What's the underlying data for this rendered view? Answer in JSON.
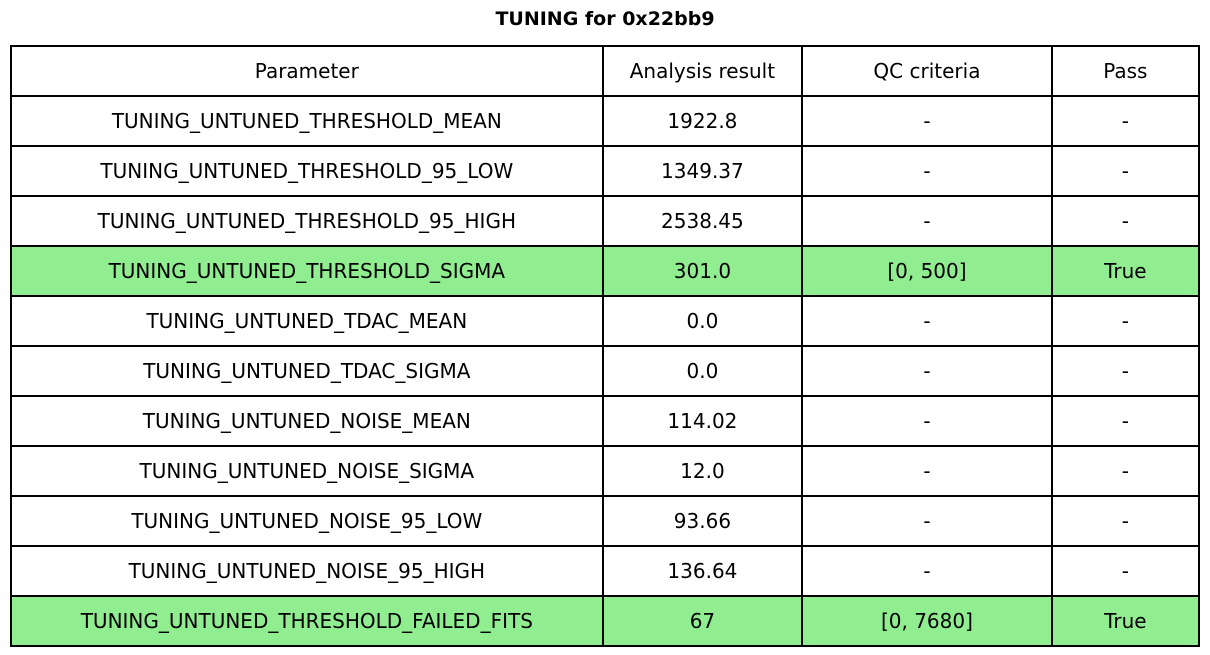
{
  "title": "TUNING for 0x22bb9",
  "chart_data": {
    "type": "table",
    "title": "TUNING for 0x22bb9",
    "columns": [
      "Parameter",
      "Analysis result",
      "QC criteria",
      "Pass"
    ],
    "rows": [
      {
        "parameter": "TUNING_UNTUNED_THRESHOLD_MEAN",
        "analysis_result": "1922.8",
        "qc_criteria": "-",
        "pass": "-",
        "highlight": false
      },
      {
        "parameter": "TUNING_UNTUNED_THRESHOLD_95_LOW",
        "analysis_result": "1349.37",
        "qc_criteria": "-",
        "pass": "-",
        "highlight": false
      },
      {
        "parameter": "TUNING_UNTUNED_THRESHOLD_95_HIGH",
        "analysis_result": "2538.45",
        "qc_criteria": "-",
        "pass": "-",
        "highlight": false
      },
      {
        "parameter": "TUNING_UNTUNED_THRESHOLD_SIGMA",
        "analysis_result": "301.0",
        "qc_criteria": "[0, 500]",
        "pass": "True",
        "highlight": true
      },
      {
        "parameter": "TUNING_UNTUNED_TDAC_MEAN",
        "analysis_result": "0.0",
        "qc_criteria": "-",
        "pass": "-",
        "highlight": false
      },
      {
        "parameter": "TUNING_UNTUNED_TDAC_SIGMA",
        "analysis_result": "0.0",
        "qc_criteria": "-",
        "pass": "-",
        "highlight": false
      },
      {
        "parameter": "TUNING_UNTUNED_NOISE_MEAN",
        "analysis_result": "114.02",
        "qc_criteria": "-",
        "pass": "-",
        "highlight": false
      },
      {
        "parameter": "TUNING_UNTUNED_NOISE_SIGMA",
        "analysis_result": "12.0",
        "qc_criteria": "-",
        "pass": "-",
        "highlight": false
      },
      {
        "parameter": "TUNING_UNTUNED_NOISE_95_LOW",
        "analysis_result": "93.66",
        "qc_criteria": "-",
        "pass": "-",
        "highlight": false
      },
      {
        "parameter": "TUNING_UNTUNED_NOISE_95_HIGH",
        "analysis_result": "136.64",
        "qc_criteria": "-",
        "pass": "-",
        "highlight": false
      },
      {
        "parameter": "TUNING_UNTUNED_THRESHOLD_FAILED_FITS",
        "analysis_result": "67",
        "qc_criteria": "[0, 7680]",
        "pass": "True",
        "highlight": true
      }
    ],
    "highlighted_rows": [
      3,
      10
    ],
    "highlight_color": "#90EE90",
    "layout": {
      "header_row": true,
      "text_align": "center",
      "grid": "full-borders",
      "legend": "none"
    }
  }
}
